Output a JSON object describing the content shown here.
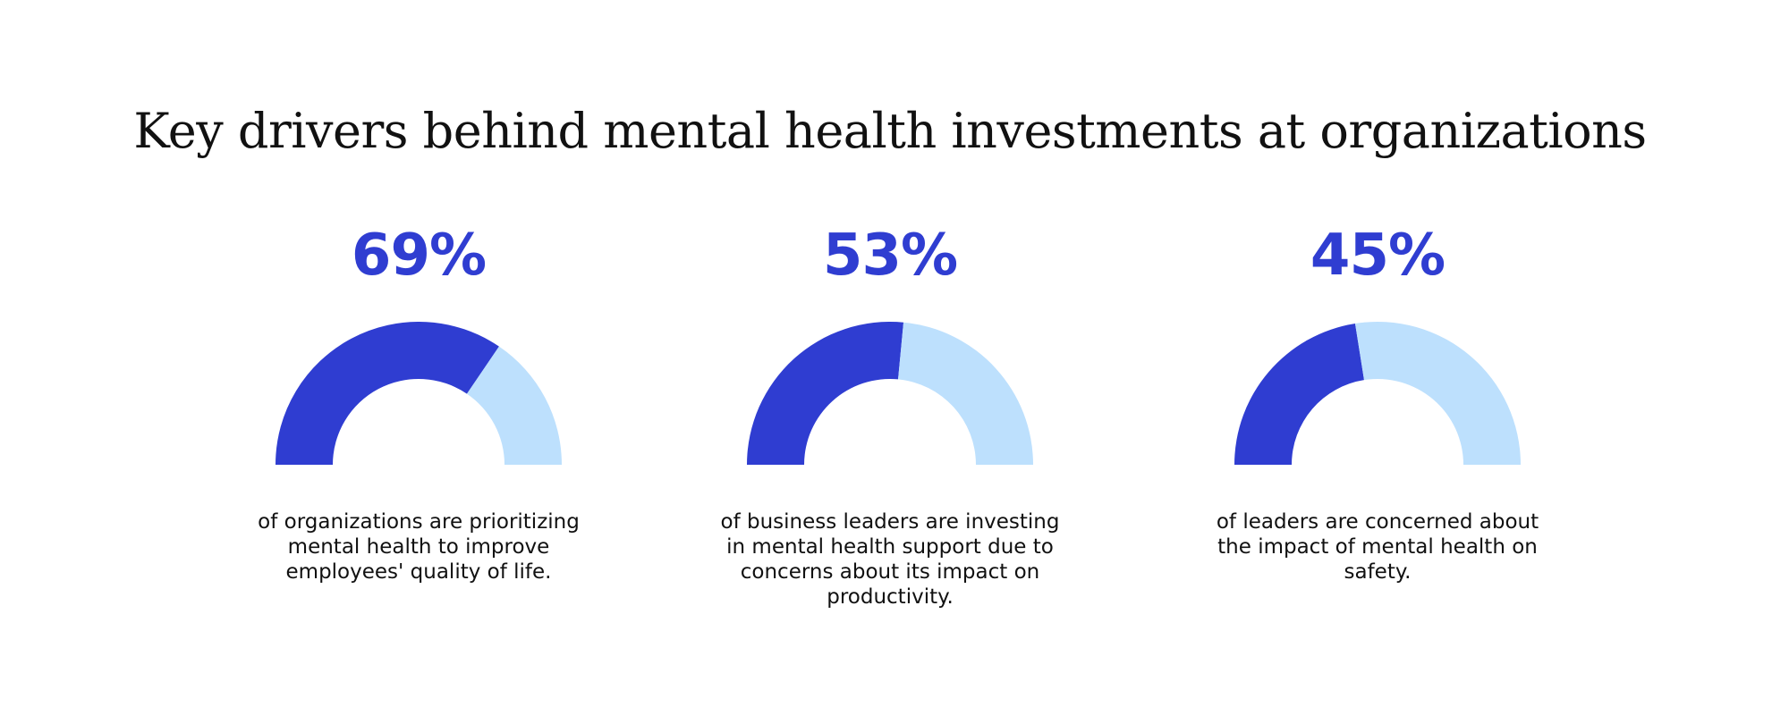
{
  "title": "Key drivers behind mental health investments at organizations",
  "colors": {
    "filled": "#2f3dd1",
    "remaining": "#bde0fd",
    "value_text": "#2f3dd1"
  },
  "chart_data": [
    {
      "type": "pie",
      "variant": "half-donut gauge",
      "value_label": "69%",
      "value": 69,
      "remaining": 31,
      "caption": "of organizations are prioritizing mental health to improve employees' quality of life."
    },
    {
      "type": "pie",
      "variant": "half-donut gauge",
      "value_label": "53%",
      "value": 53,
      "remaining": 47,
      "caption": "of business leaders are investing in mental health support due to concerns about its impact on productivity."
    },
    {
      "type": "pie",
      "variant": "half-donut gauge",
      "value_label": "45%",
      "value": 45,
      "remaining": 55,
      "caption": "of leaders are concerned about the impact of mental health on safety."
    }
  ]
}
